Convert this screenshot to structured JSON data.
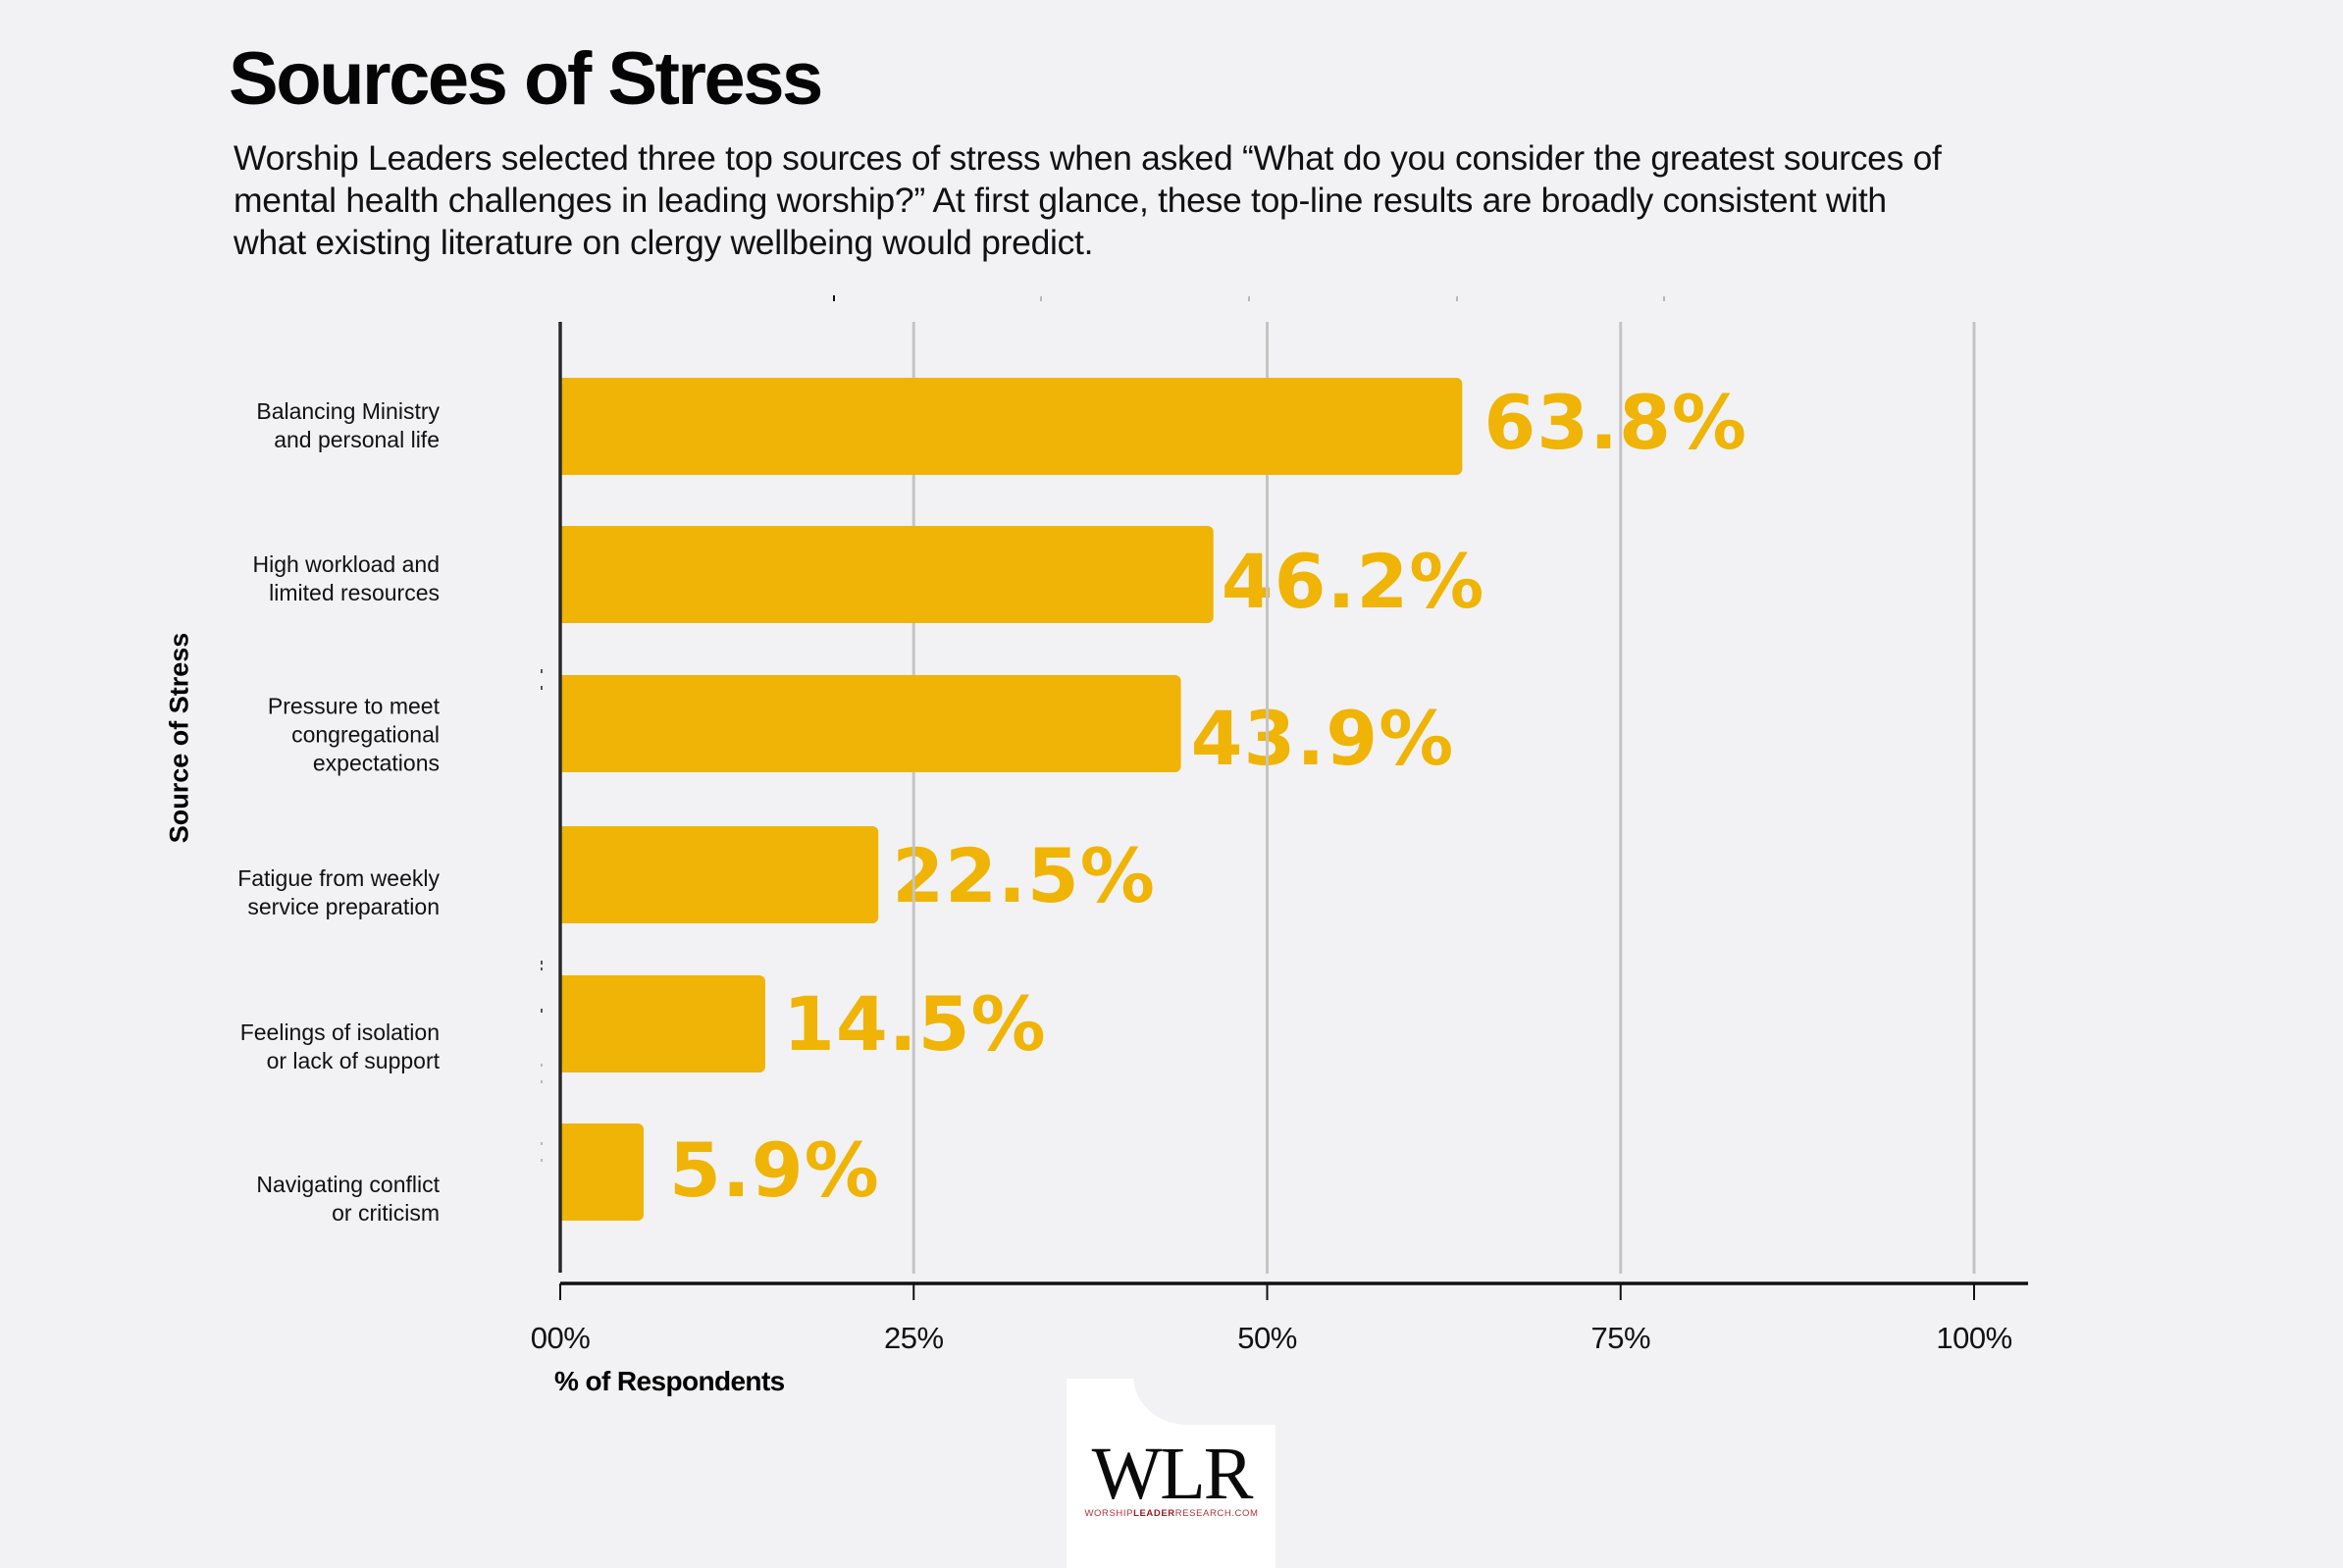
{
  "header": {
    "title": "Sources of Stress",
    "subtitle_lines": [
      "Worship Leaders selected three top sources of stress when asked “What do you consider the greatest sources of",
      "mental health challenges in leading worship?” At first glance, these top-line results are broadly consistent with",
      "what existing literature on clergy wellbeing would predict."
    ]
  },
  "colors": {
    "background": "#f2f2f4",
    "bar": "#efb406",
    "value_label": "#efb406",
    "gridline": "#c4c4c4",
    "axis": "#111111",
    "brand_red": "#b3313a"
  },
  "chart_data": {
    "type": "bar",
    "orientation": "horizontal",
    "title": "Sources of Stress",
    "xlabel": "% of Respondents",
    "ylabel": "Source of Stress",
    "xlim": [
      0,
      100
    ],
    "grid": true,
    "legend": "none",
    "x_ticks": [
      0,
      25,
      50,
      75,
      100
    ],
    "x_tick_labels": [
      "00%",
      "25%",
      "50%",
      "75%",
      "100%"
    ],
    "categories": [
      [
        "Balancing Ministry",
        "and personal life"
      ],
      [
        "High workload and",
        "limited resources"
      ],
      [
        "Pressure to meet",
        "congregational",
        "expectations"
      ],
      [
        "Fatigue from weekly",
        "service preparation"
      ],
      [
        "Feelings of isolation",
        "or lack of support"
      ],
      [
        "Navigating conflict",
        "or criticism"
      ]
    ],
    "values": [
      63.8,
      46.2,
      43.9,
      22.5,
      14.5,
      5.9
    ],
    "data_labels": [
      "63.8%",
      "46.2%",
      "43.9%",
      "22.5%",
      "14.5%",
      "5.9%"
    ]
  },
  "logo": {
    "mark": "WLR",
    "url_prefix": "WORSHIP",
    "url_bold": "LEADER",
    "url_suffix": "RESEARCH.COM"
  }
}
